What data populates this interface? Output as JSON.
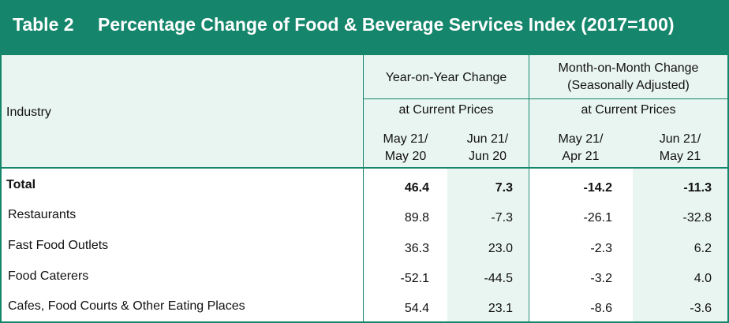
{
  "title": {
    "table_number": "Table 2",
    "text": "Percentage Change of Food & Beverage Services Index (2017=100)"
  },
  "header": {
    "industry": "Industry",
    "yoy_group": "Year-on-Year Change",
    "mom_group_line1": "Month-on-Month Change",
    "mom_group_line2": "(Seasonally Adjusted)",
    "yoy_sub": "at Current Prices",
    "mom_sub": "at Current Prices",
    "col1_line1": "May 21/",
    "col1_line2": "May 20",
    "col2_line1": "Jun 21/",
    "col2_line2": "Jun 20",
    "col3_line1": "May 21/",
    "col3_line2": "Apr 21",
    "col4_line1": "Jun 21/",
    "col4_line2": "May 21"
  },
  "rows": [
    {
      "industry": "Total",
      "yoy_may": "46.4",
      "yoy_jun": "7.3",
      "mom_may": "-14.2",
      "mom_jun": "-11.3"
    },
    {
      "industry": "Restaurants",
      "yoy_may": "89.8",
      "yoy_jun": "-7.3",
      "mom_may": "-26.1",
      "mom_jun": "-32.8"
    },
    {
      "industry": "Fast Food Outlets",
      "yoy_may": "36.3",
      "yoy_jun": "23.0",
      "mom_may": "-2.3",
      "mom_jun": "6.2"
    },
    {
      "industry": "Food Caterers",
      "yoy_may": "-52.1",
      "yoy_jun": "-44.5",
      "mom_may": "-3.2",
      "mom_jun": "4.0"
    },
    {
      "industry": "Cafes, Food Courts & Other Eating Places",
      "yoy_may": "54.4",
      "yoy_jun": "23.1",
      "mom_may": "-8.6",
      "mom_jun": "-3.6"
    }
  ],
  "colors": {
    "accent": "#15866b",
    "header_fill": "#e9f5f1",
    "title_text": "#ffffff"
  }
}
